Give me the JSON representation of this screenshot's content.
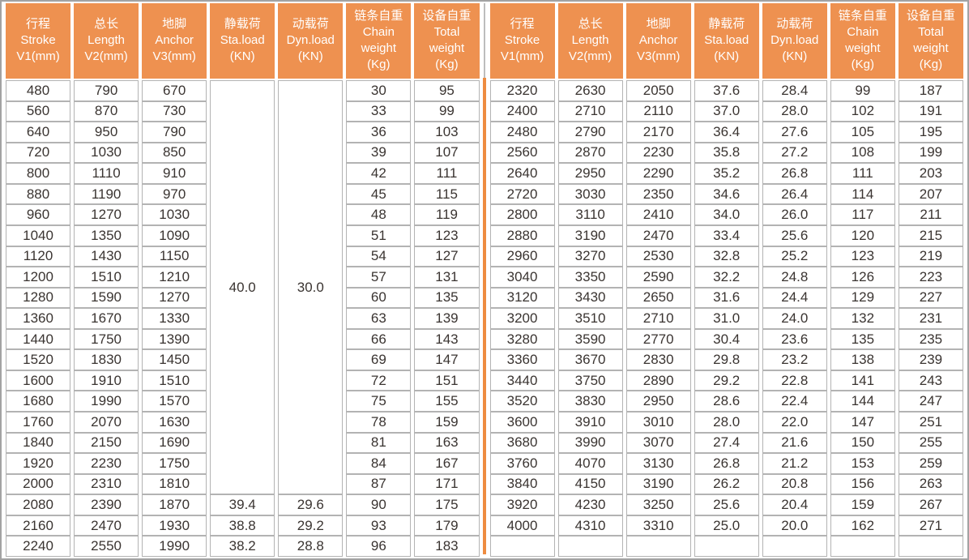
{
  "colors": {
    "header_bg": "#EE9150",
    "divider_orange": "#EE8C41",
    "cell_border": "#B3B3B3",
    "outer_border": "#A3A3A3",
    "text": "#3A3431",
    "header_text": "#FFFFFF"
  },
  "table": {
    "columns": [
      {
        "lines": [
          "行程",
          "Stroke",
          "V1(mm)"
        ]
      },
      {
        "lines": [
          "总长",
          "Length",
          "V2(mm)"
        ]
      },
      {
        "lines": [
          "地脚",
          "Anchor",
          "V3(mm)"
        ]
      },
      {
        "lines": [
          "静载荷",
          "Sta.load",
          "(KN)"
        ]
      },
      {
        "lines": [
          "动载荷",
          "Dyn.load",
          "(KN)"
        ]
      },
      {
        "lines": [
          "链条自重",
          "Chain",
          "weight",
          "(Kg)"
        ]
      },
      {
        "lines": [
          "设备自重",
          "Total",
          "weight",
          "(Kg)"
        ]
      }
    ],
    "left": {
      "merged": {
        "sta": "40.0",
        "dyn": "30.0"
      },
      "merged_row_count": 20,
      "rows": [
        [
          "480",
          "790",
          "670",
          "30",
          "95"
        ],
        [
          "560",
          "870",
          "730",
          "33",
          "99"
        ],
        [
          "640",
          "950",
          "790",
          "36",
          "103"
        ],
        [
          "720",
          "1030",
          "850",
          "39",
          "107"
        ],
        [
          "800",
          "1110",
          "910",
          "42",
          "111"
        ],
        [
          "880",
          "1190",
          "970",
          "45",
          "115"
        ],
        [
          "960",
          "1270",
          "1030",
          "48",
          "119"
        ],
        [
          "1040",
          "1350",
          "1090",
          "51",
          "123"
        ],
        [
          "1120",
          "1430",
          "1150",
          "54",
          "127"
        ],
        [
          "1200",
          "1510",
          "1210",
          "57",
          "131"
        ],
        [
          "1280",
          "1590",
          "1270",
          "60",
          "135"
        ],
        [
          "1360",
          "1670",
          "1330",
          "63",
          "139"
        ],
        [
          "1440",
          "1750",
          "1390",
          "66",
          "143"
        ],
        [
          "1520",
          "1830",
          "1450",
          "69",
          "147"
        ],
        [
          "1600",
          "1910",
          "1510",
          "72",
          "151"
        ],
        [
          "1680",
          "1990",
          "1570",
          "75",
          "155"
        ],
        [
          "1760",
          "2070",
          "1630",
          "78",
          "159"
        ],
        [
          "1840",
          "2150",
          "1690",
          "81",
          "163"
        ],
        [
          "1920",
          "2230",
          "1750",
          "84",
          "167"
        ],
        [
          "2000",
          "2310",
          "1810",
          "87",
          "171"
        ],
        [
          "2080",
          "2390",
          "1870",
          "39.4",
          "29.6",
          "90",
          "175"
        ],
        [
          "2160",
          "2470",
          "1930",
          "38.8",
          "29.2",
          "93",
          "179"
        ],
        [
          "2240",
          "2550",
          "1990",
          "38.2",
          "28.8",
          "96",
          "183"
        ]
      ]
    },
    "right": {
      "rows": [
        [
          "2320",
          "2630",
          "2050",
          "37.6",
          "28.4",
          "99",
          "187"
        ],
        [
          "2400",
          "2710",
          "2110",
          "37.0",
          "28.0",
          "102",
          "191"
        ],
        [
          "2480",
          "2790",
          "2170",
          "36.4",
          "27.6",
          "105",
          "195"
        ],
        [
          "2560",
          "2870",
          "2230",
          "35.8",
          "27.2",
          "108",
          "199"
        ],
        [
          "2640",
          "2950",
          "2290",
          "35.2",
          "26.8",
          "111",
          "203"
        ],
        [
          "2720",
          "3030",
          "2350",
          "34.6",
          "26.4",
          "114",
          "207"
        ],
        [
          "2800",
          "3110",
          "2410",
          "34.0",
          "26.0",
          "117",
          "211"
        ],
        [
          "2880",
          "3190",
          "2470",
          "33.4",
          "25.6",
          "120",
          "215"
        ],
        [
          "2960",
          "3270",
          "2530",
          "32.8",
          "25.2",
          "123",
          "219"
        ],
        [
          "3040",
          "3350",
          "2590",
          "32.2",
          "24.8",
          "126",
          "223"
        ],
        [
          "3120",
          "3430",
          "2650",
          "31.6",
          "24.4",
          "129",
          "227"
        ],
        [
          "3200",
          "3510",
          "2710",
          "31.0",
          "24.0",
          "132",
          "231"
        ],
        [
          "3280",
          "3590",
          "2770",
          "30.4",
          "23.6",
          "135",
          "235"
        ],
        [
          "3360",
          "3670",
          "2830",
          "29.8",
          "23.2",
          "138",
          "239"
        ],
        [
          "3440",
          "3750",
          "2890",
          "29.2",
          "22.8",
          "141",
          "243"
        ],
        [
          "3520",
          "3830",
          "2950",
          "28.6",
          "22.4",
          "144",
          "247"
        ],
        [
          "3600",
          "3910",
          "3010",
          "28.0",
          "22.0",
          "147",
          "251"
        ],
        [
          "3680",
          "3990",
          "3070",
          "27.4",
          "21.6",
          "150",
          "255"
        ],
        [
          "3760",
          "4070",
          "3130",
          "26.8",
          "21.2",
          "153",
          "259"
        ],
        [
          "3840",
          "4150",
          "3190",
          "26.2",
          "20.8",
          "156",
          "263"
        ],
        [
          "3920",
          "4230",
          "3250",
          "25.6",
          "20.4",
          "159",
          "267"
        ],
        [
          "4000",
          "4310",
          "3310",
          "25.0",
          "20.0",
          "162",
          "271"
        ],
        [
          "",
          "",
          "",
          "",
          "",
          "",
          ""
        ]
      ]
    }
  }
}
